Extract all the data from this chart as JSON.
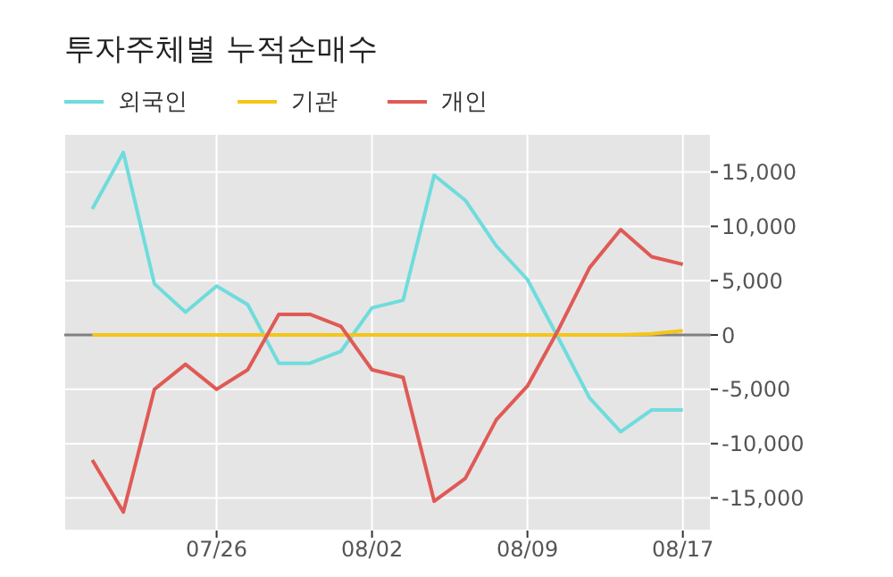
{
  "chart_data": {
    "type": "line",
    "title": "투자주체별 누적순매수",
    "categories": [
      null,
      null,
      null,
      null,
      "07/26",
      null,
      null,
      null,
      null,
      "08/02",
      null,
      null,
      null,
      null,
      "08/09",
      null,
      null,
      null,
      null,
      "08/17"
    ],
    "series": [
      {
        "name": "외국인",
        "color": "#6fdcdc",
        "values": [
          11600,
          16800,
          4700,
          2100,
          4500,
          2800,
          -2600,
          -2600,
          -1500,
          2500,
          3200,
          14700,
          12400,
          8200,
          5100,
          -300,
          -5800,
          -8900,
          -6900,
          -6900
        ]
      },
      {
        "name": "기관",
        "color": "#f5c518",
        "values": [
          0,
          0,
          0,
          0,
          0,
          0,
          0,
          0,
          0,
          0,
          0,
          0,
          0,
          0,
          0,
          0,
          0,
          0,
          100,
          400
        ]
      },
      {
        "name": "개인",
        "color": "#e05a55",
        "values": [
          -11500,
          -16300,
          -5000,
          -2700,
          -5000,
          -3200,
          1900,
          1900,
          800,
          -3200,
          -3900,
          -15300,
          -13200,
          -7800,
          -4700,
          500,
          6200,
          9700,
          7200,
          6500
        ]
      }
    ],
    "ylim": [
      -18000,
      18500
    ],
    "yticks": [
      {
        "value": -15000,
        "label": "-15,000"
      },
      {
        "value": -10000,
        "label": "-10,000"
      },
      {
        "value": -5000,
        "label": "-5,000"
      },
      0,
      {
        "value": 5000,
        "label": "5,000"
      },
      {
        "value": 10000,
        "label": "10,000"
      },
      {
        "value": 15000,
        "label": "15,000"
      }
    ],
    "ref_lines": [
      {
        "axis": "y",
        "value": 0,
        "color": "#808080"
      }
    ],
    "grid": true,
    "legend": "top left",
    "marker": "none",
    "line_style": "solid"
  }
}
